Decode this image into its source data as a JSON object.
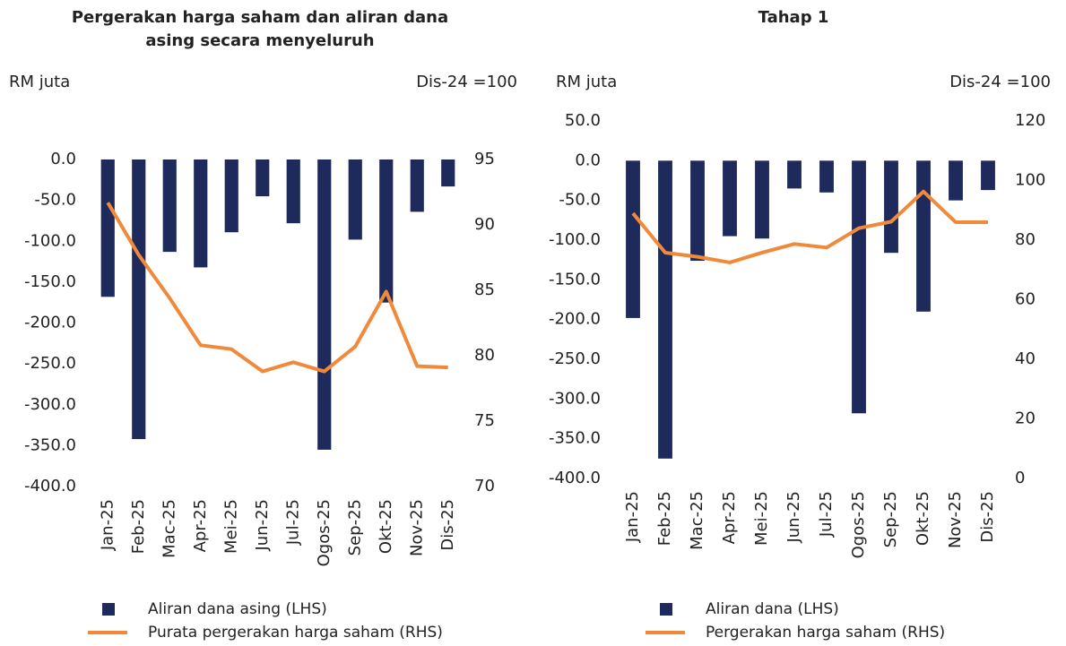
{
  "chart_data": [
    {
      "type": "bar_line",
      "title": "Pergerakan harga saham dan aliran dana asing secara menyeluruh",
      "ylabel": "RM juta",
      "y2label": "Dis-24 =100",
      "categories": [
        "Jan-25",
        "Feb-25",
        "Mac-25",
        "Apr-25",
        "Mei-25",
        "Jun-25",
        "Jul-25",
        "Ogos-25",
        "Sep-25",
        "Okt-25",
        "Nov-25",
        "Dis-25"
      ],
      "series": [
        {
          "name": "Aliran dana asing (LHS)",
          "type": "bar",
          "color": "#1f2a5c",
          "values": [
            -168,
            -342,
            -113,
            -132,
            -89,
            -45,
            -78,
            -355,
            -98,
            -175,
            -64,
            -33
          ]
        },
        {
          "name": "Purata pergerakan harga saham (RHS)",
          "type": "line",
          "axis": "y2",
          "color": "#f08a3a",
          "values": [
            91.7,
            87.7,
            84.4,
            80.8,
            80.5,
            78.8,
            79.5,
            78.8,
            80.7,
            84.9,
            79.2,
            79.1
          ]
        }
      ],
      "ylim": [
        -400,
        0
      ],
      "yticks": [
        {
          "value": 0,
          "label": "0.0"
        },
        {
          "value": -50,
          "label": "-50.0"
        },
        {
          "value": -100,
          "label": "-100.0"
        },
        {
          "value": -150,
          "label": "-150.0"
        },
        {
          "value": -200,
          "label": "-200.0"
        },
        {
          "value": -250,
          "label": "-250.0"
        },
        {
          "value": -300,
          "label": "-300.0"
        },
        {
          "value": -350,
          "label": "-350.0"
        },
        {
          "value": -400,
          "label": "-400.0"
        }
      ],
      "y2lim": [
        70,
        95
      ],
      "y2ticks": [
        95,
        90,
        85,
        80,
        75,
        70
      ]
    },
    {
      "type": "bar_line",
      "title": "Tahap 1",
      "ylabel": "RM juta",
      "y2label": "Dis-24 =100",
      "categories": [
        "Jan-25",
        "Feb-25",
        "Mac-25",
        "Apr-25",
        "Mei-25",
        "Jun-25",
        "Jul-25",
        "Ogos-25",
        "Sep-25",
        "Okt-25",
        "Nov-25",
        "Dis-25"
      ],
      "series": [
        {
          "name": "Aliran dana (LHS)",
          "type": "bar",
          "color": "#1f2a5c",
          "values": [
            -198,
            -375,
            -126,
            -95,
            -98,
            -35,
            -40,
            -318,
            -116,
            -190,
            -50,
            -37
          ]
        },
        {
          "name": "Pergerakan harga saham (RHS)",
          "type": "line",
          "axis": "y2",
          "color": "#f08a3a",
          "values": [
            89,
            75.8,
            74.4,
            72.5,
            75.8,
            78.7,
            77.5,
            84,
            86.2,
            96.3,
            86,
            86
          ]
        }
      ],
      "ylim": [
        -400,
        50
      ],
      "yticks": [
        {
          "value": 50,
          "label": "50.0"
        },
        {
          "value": 0,
          "label": "0.0"
        },
        {
          "value": -50,
          "label": "-50.0"
        },
        {
          "value": -100,
          "label": "-100.0"
        },
        {
          "value": -150,
          "label": "-150.0"
        },
        {
          "value": -200,
          "label": "-200.0"
        },
        {
          "value": -250,
          "label": "-250.0"
        },
        {
          "value": -300,
          "label": "-300.0"
        },
        {
          "value": -350,
          "label": "-350.0"
        },
        {
          "value": -400,
          "label": "-400.0"
        }
      ],
      "y2lim": [
        0,
        120
      ],
      "y2ticks": [
        120,
        100,
        80,
        60,
        40,
        20,
        0
      ]
    }
  ]
}
